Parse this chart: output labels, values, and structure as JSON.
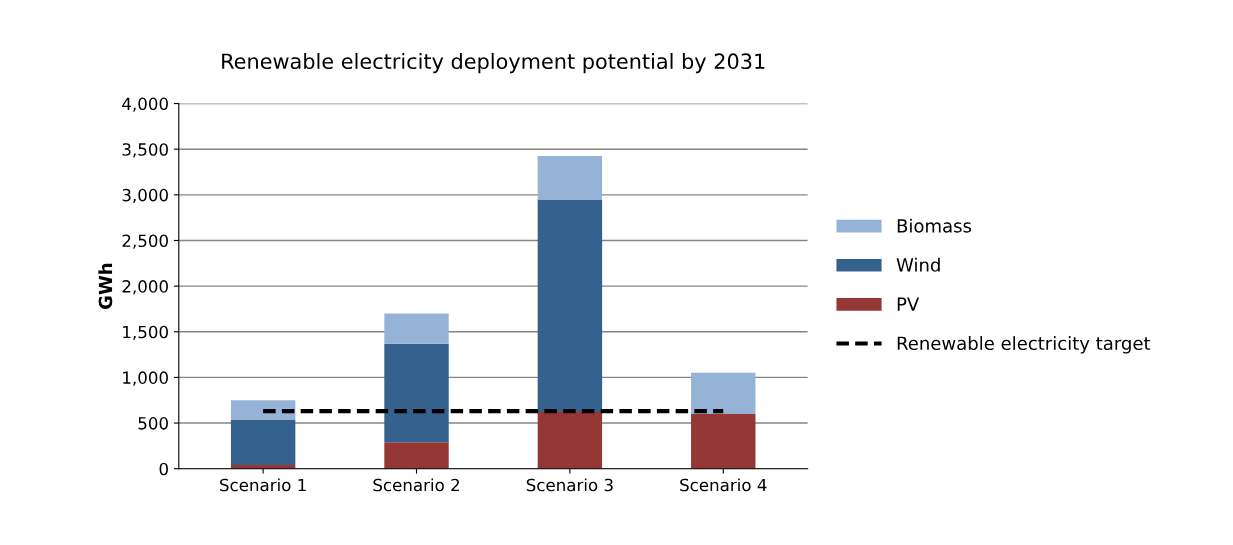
{
  "chart_data": {
    "type": "bar",
    "title": "Renewable electricity deployment potential by 2031",
    "ylabel": "GWh",
    "categories": [
      "Scenario 1",
      "Scenario 2",
      "Scenario 3",
      "Scenario 4"
    ],
    "stacked": true,
    "series": [
      {
        "name": "PV",
        "color": "#953735",
        "values": [
          40,
          290,
          620,
          600
        ]
      },
      {
        "name": "Wind",
        "color": "#35618f",
        "values": [
          500,
          1080,
          2330,
          0
        ]
      },
      {
        "name": "Biomass",
        "color": "#95b3d7",
        "values": [
          210,
          330,
          475,
          450
        ]
      },
      {
        "name": "Renewable electricity target",
        "type": "line",
        "color": "#000000",
        "line_style": "dashed",
        "values": [
          630,
          630,
          630,
          630
        ]
      }
    ],
    "ylim": [
      0,
      4000
    ],
    "yticks": [
      {
        "value": 0,
        "label": "0"
      },
      {
        "value": 500,
        "label": "500"
      },
      {
        "value": 1000,
        "label": "1,000"
      },
      {
        "value": 1500,
        "label": "1,500"
      },
      {
        "value": 2000,
        "label": "2,000"
      },
      {
        "value": 2500,
        "label": "2,500"
      },
      {
        "value": 3000,
        "label": "3,000"
      },
      {
        "value": 3500,
        "label": "3,500"
      },
      {
        "value": 4000,
        "label": "4,000"
      }
    ],
    "grid": "y",
    "legend": "right"
  }
}
